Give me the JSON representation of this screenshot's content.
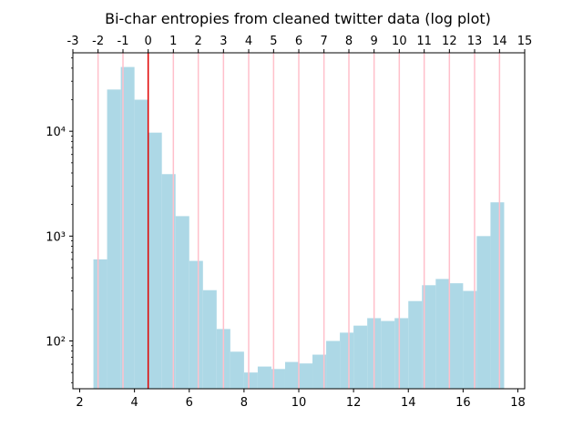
{
  "chart_data": {
    "type": "bar",
    "title": "Bi-char entropies from cleaned twitter data (log plot)",
    "xlabel": "",
    "ylabel": "",
    "yscale": "log",
    "xlim": [
      1.75,
      18.25
    ],
    "ylim": [
      35,
      56000
    ],
    "x_ticks": [
      2,
      4,
      6,
      8,
      10,
      12,
      14,
      16,
      18
    ],
    "y_ticks": [
      {
        "value": 100,
        "label": "10²"
      },
      {
        "value": 1000,
        "label": "10³"
      },
      {
        "value": 10000,
        "label": "10⁴"
      }
    ],
    "bin_width": 0.5,
    "bins": [
      {
        "x0": 2.5,
        "value": 600
      },
      {
        "x0": 3.0,
        "value": 25000
      },
      {
        "x0": 3.5,
        "value": 41000
      },
      {
        "x0": 4.0,
        "value": 20000
      },
      {
        "x0": 4.5,
        "value": 9700
      },
      {
        "x0": 5.0,
        "value": 3900
      },
      {
        "x0": 5.5,
        "value": 1550
      },
      {
        "x0": 6.0,
        "value": 580
      },
      {
        "x0": 6.5,
        "value": 305
      },
      {
        "x0": 7.0,
        "value": 130
      },
      {
        "x0": 7.5,
        "value": 79
      },
      {
        "x0": 8.0,
        "value": 50
      },
      {
        "x0": 8.5,
        "value": 57
      },
      {
        "x0": 9.0,
        "value": 54
      },
      {
        "x0": 9.5,
        "value": 63
      },
      {
        "x0": 10.0,
        "value": 61
      },
      {
        "x0": 10.5,
        "value": 74
      },
      {
        "x0": 11.0,
        "value": 100
      },
      {
        "x0": 11.5,
        "value": 120
      },
      {
        "x0": 12.0,
        "value": 140
      },
      {
        "x0": 12.5,
        "value": 165
      },
      {
        "x0": 13.0,
        "value": 155
      },
      {
        "x0": 13.5,
        "value": 165
      },
      {
        "x0": 14.0,
        "value": 240
      },
      {
        "x0": 14.5,
        "value": 340
      },
      {
        "x0": 15.0,
        "value": 390
      },
      {
        "x0": 15.5,
        "value": 355
      },
      {
        "x0": 16.0,
        "value": 300
      },
      {
        "x0": 16.5,
        "value": 1000
      },
      {
        "x0": 17.0,
        "value": 2100
      }
    ],
    "top_axis": {
      "labels": [
        "-3",
        "-2",
        "-1",
        "0",
        "1",
        "2",
        "3",
        "4",
        "5",
        "6",
        "7",
        "8",
        "9",
        "10",
        "11",
        "12",
        "13",
        "14",
        "15"
      ],
      "positions_bottom_x": [
        1.75,
        2.67,
        3.58,
        4.5,
        5.42,
        6.33,
        7.25,
        8.17,
        9.08,
        10.0,
        10.92,
        11.83,
        12.75,
        13.67,
        14.58,
        15.5,
        16.42,
        17.33,
        18.25
      ]
    },
    "vlines": [
      {
        "x": 2.67,
        "color": "#ffc0cb"
      },
      {
        "x": 3.58,
        "color": "#ffc0cb"
      },
      {
        "x": 4.5,
        "color": "#e00000"
      },
      {
        "x": 5.42,
        "color": "#ffc0cb"
      },
      {
        "x": 6.33,
        "color": "#ffc0cb"
      },
      {
        "x": 7.25,
        "color": "#ffc0cb"
      },
      {
        "x": 8.17,
        "color": "#ffc0cb"
      },
      {
        "x": 9.08,
        "color": "#ffc0cb"
      },
      {
        "x": 10.0,
        "color": "#ffc0cb"
      },
      {
        "x": 10.92,
        "color": "#ffc0cb"
      },
      {
        "x": 11.83,
        "color": "#ffc0cb"
      },
      {
        "x": 12.75,
        "color": "#ffc0cb"
      },
      {
        "x": 13.67,
        "color": "#ffc0cb"
      },
      {
        "x": 14.58,
        "color": "#ffc0cb"
      },
      {
        "x": 15.5,
        "color": "#ffc0cb"
      },
      {
        "x": 16.42,
        "color": "#ffc0cb"
      },
      {
        "x": 17.33,
        "color": "#ffc0cb"
      }
    ],
    "bar_color": "#add8e6",
    "grid": false,
    "legend": "none"
  }
}
